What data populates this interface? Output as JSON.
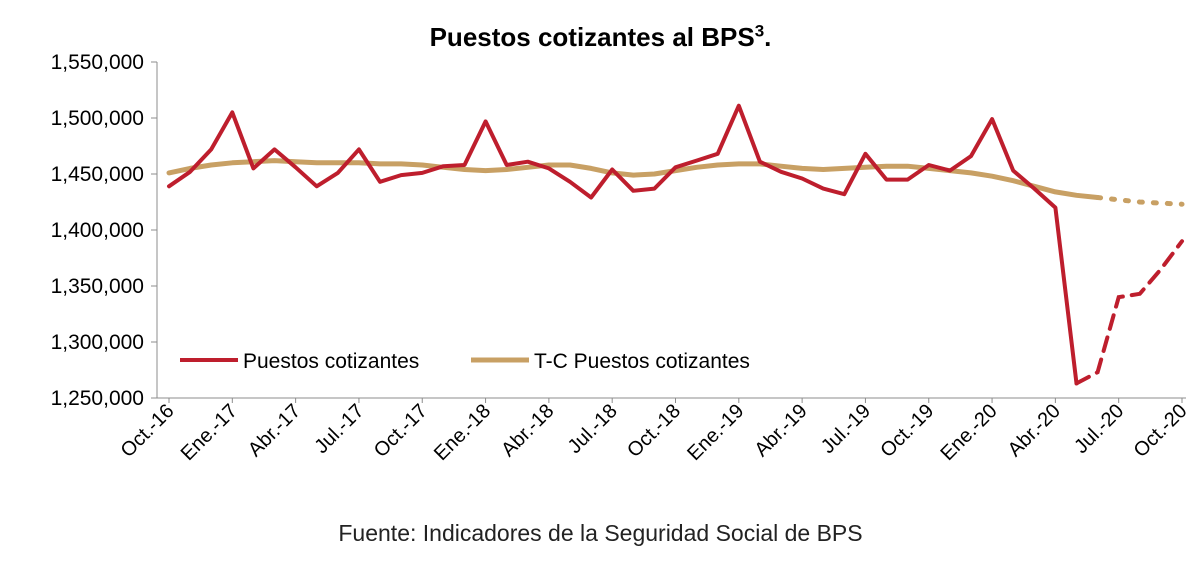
{
  "chart_data": {
    "type": "line",
    "title": "Puestos cotizantes al BPS",
    "title_superscript": "3",
    "title_suffix": ".",
    "source_note": "Fuente: Indicadores de la Seguridad Social de BPS",
    "ylim": [
      1250000,
      1550000
    ],
    "yticks": [
      1250000,
      1300000,
      1350000,
      1400000,
      1450000,
      1500000,
      1550000
    ],
    "ytick_labels": [
      "1,250,000",
      "1,300,000",
      "1,350,000",
      "1,400,000",
      "1,450,000",
      "1,500,000",
      "1,550,000"
    ],
    "x_tick_labels": [
      "Oct.-16",
      "Ene.-17",
      "Abr.-17",
      "Jul.-17",
      "Oct.-17",
      "Ene.-18",
      "Abr.-18",
      "Jul.-18",
      "Oct.-18",
      "Ene.-19",
      "Abr.-19",
      "Jul.-19",
      "Oct.-19",
      "Ene.-20",
      "Abr.-20",
      "Jul.-20",
      "Oct.-20"
    ],
    "x_tick_step_months": 3,
    "grid": false,
    "legend_position": "bottom-left",
    "series": [
      {
        "name": "Puestos cotizantes",
        "color": "#BE1E2D",
        "dashed_from_index": 43,
        "values": [
          1439000,
          1452000,
          1472000,
          1505000,
          1455000,
          1472000,
          1456000,
          1439000,
          1451000,
          1472000,
          1443000,
          1449000,
          1451000,
          1457000,
          1458000,
          1497000,
          1458000,
          1461000,
          1455000,
          1443000,
          1429000,
          1454000,
          1435000,
          1437000,
          1456000,
          1462000,
          1468000,
          1511000,
          1461000,
          1452000,
          1446000,
          1437000,
          1432000,
          1468000,
          1445000,
          1445000,
          1458000,
          1453000,
          1466000,
          1499000,
          1453000,
          1437000,
          1420000,
          1263000,
          1273000,
          1340000,
          1343000,
          1365000,
          1390000
        ]
      },
      {
        "name": "T-C Puestos cotizantes",
        "color": "#C8A064",
        "dotted_from_index": 44,
        "values": [
          1451000,
          1455000,
          1458000,
          1460000,
          1461000,
          1462000,
          1461000,
          1460000,
          1460000,
          1460000,
          1459000,
          1459000,
          1458000,
          1456000,
          1454000,
          1453000,
          1454000,
          1456000,
          1458000,
          1458000,
          1455000,
          1451000,
          1449000,
          1450000,
          1453000,
          1456000,
          1458000,
          1459000,
          1459000,
          1457000,
          1455000,
          1454000,
          1455000,
          1456000,
          1457000,
          1457000,
          1455000,
          1453000,
          1451000,
          1448000,
          1444000,
          1439000,
          1434000,
          1431000,
          1429000,
          1427000,
          1425000,
          1424000,
          1423000
        ]
      }
    ]
  }
}
